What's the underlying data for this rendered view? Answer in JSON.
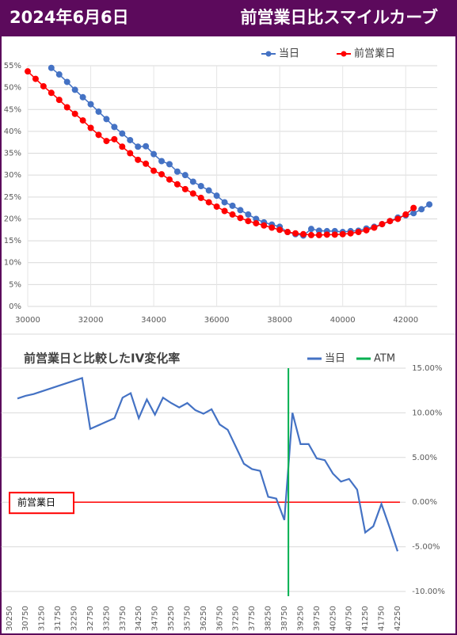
{
  "header": {
    "date": "2024年6月6日",
    "title": "前営業日比スマイルカーブ"
  },
  "chart_data": [
    {
      "type": "line",
      "markers": true,
      "grid": "xy",
      "legend": "top-right",
      "xlim": [
        30000,
        43000
      ],
      "xticks": [
        30000,
        32000,
        34000,
        36000,
        38000,
        40000,
        42000
      ],
      "ylim": [
        0,
        55
      ],
      "yticks": [
        {
          "value": 0,
          "label": "0%"
        },
        {
          "value": 5,
          "label": "5%"
        },
        {
          "value": 10,
          "label": "10%"
        },
        {
          "value": 15,
          "label": "15%"
        },
        {
          "value": 20,
          "label": "20%"
        },
        {
          "value": 25,
          "label": "25%"
        },
        {
          "value": 30,
          "label": "30%"
        },
        {
          "value": 35,
          "label": "35%"
        },
        {
          "value": 40,
          "label": "40%"
        },
        {
          "value": 45,
          "label": "45%"
        },
        {
          "value": 50,
          "label": "50%"
        },
        {
          "value": 55,
          "label": "55%"
        }
      ],
      "series": [
        {
          "name": "当日",
          "color": "#4472c4",
          "x": [
            30750,
            31000,
            31250,
            31500,
            31750,
            32000,
            32250,
            32500,
            32750,
            33000,
            33250,
            33500,
            33750,
            34000,
            34250,
            34500,
            34750,
            35000,
            35250,
            35500,
            35750,
            36000,
            36250,
            36500,
            36750,
            37000,
            37250,
            37500,
            37750,
            38000,
            38250,
            38500,
            38750,
            39000,
            39250,
            39500,
            39750,
            40000,
            40250,
            40500,
            40750,
            41000,
            41250,
            41500,
            41750,
            42000,
            42250,
            42500,
            42750
          ],
          "values": [
            54.5,
            53,
            51.3,
            49.5,
            47.8,
            46.2,
            44.5,
            42.8,
            41,
            39.5,
            38,
            36.5,
            36.6,
            34.8,
            33.2,
            32.5,
            30.8,
            30,
            28.5,
            27.5,
            26.5,
            25.3,
            23.8,
            23,
            22,
            21,
            20,
            19.2,
            18.7,
            18.2,
            17,
            16.5,
            16.2,
            17.7,
            17.3,
            17.2,
            17.2,
            17,
            17.2,
            17.3,
            17.8,
            18.2,
            18.8,
            19.5,
            20.3,
            20.8,
            21.3,
            22.2,
            23.3
          ]
        },
        {
          "name": "前営業日",
          "color": "#ff0000",
          "x": [
            30000,
            30250,
            30500,
            30750,
            31000,
            31250,
            31500,
            31750,
            32000,
            32250,
            32500,
            32750,
            33000,
            33250,
            33500,
            33750,
            34000,
            34250,
            34500,
            34750,
            35000,
            35250,
            35500,
            35750,
            36000,
            36250,
            36500,
            36750,
            37000,
            37250,
            37500,
            37750,
            38000,
            38250,
            38500,
            38750,
            39000,
            39250,
            39500,
            39750,
            40000,
            40250,
            40500,
            40750,
            41000,
            41250,
            41500,
            41750,
            42000,
            42250
          ],
          "values": [
            53.7,
            52,
            50.3,
            48.8,
            47.2,
            45.5,
            44,
            42.5,
            40.8,
            39.2,
            37.8,
            38.2,
            36.5,
            35,
            33.5,
            32.6,
            31,
            30.2,
            29,
            27.9,
            26.8,
            25.8,
            24.8,
            23.8,
            22.8,
            21.8,
            21,
            20.2,
            19.5,
            19,
            18.5,
            18,
            17.5,
            17,
            16.7,
            16.5,
            16.3,
            16.3,
            16.4,
            16.4,
            16.5,
            16.7,
            17,
            17.4,
            18,
            18.8,
            19.5,
            20,
            21,
            22.5
          ]
        }
      ]
    },
    {
      "type": "line",
      "title": "前営業日と比較したIV変化率",
      "markers": false,
      "grid": "y",
      "yaxis": "right",
      "legend": "top-right",
      "xlim": [
        30000,
        42500
      ],
      "xticks": [
        30250,
        30750,
        31250,
        31750,
        32250,
        32750,
        33250,
        33750,
        34250,
        34750,
        35250,
        35750,
        36250,
        36750,
        37250,
        37750,
        38250,
        38750,
        39250,
        39750,
        40250,
        40750,
        41250,
        41750,
        42250
      ],
      "ylim": [
        -10,
        15
      ],
      "yticks": [
        {
          "value": 15,
          "label": "15.00%"
        },
        {
          "value": 10,
          "label": "10.00%"
        },
        {
          "value": 5,
          "label": "5.00%"
        },
        {
          "value": 0,
          "label": "0.00%"
        },
        {
          "value": -5,
          "label": "-5.00%"
        },
        {
          "value": -10,
          "label": "-10.00%"
        }
      ],
      "series": [
        {
          "name": "当日",
          "color": "#4472c4",
          "x": [
            30500,
            30750,
            31000,
            31250,
            31500,
            31750,
            32000,
            32250,
            32500,
            32750,
            33000,
            33250,
            33500,
            33750,
            34000,
            34250,
            34500,
            34750,
            35000,
            35250,
            35500,
            35750,
            36000,
            36250,
            36500,
            36750,
            37000,
            37250,
            37500,
            37750,
            38000,
            38250,
            38500,
            38750,
            39000,
            39250,
            39500,
            39750,
            40000,
            40250,
            40500,
            40750,
            41000,
            41250,
            41500,
            41750,
            42000,
            42250
          ],
          "values": [
            11.6,
            11.9,
            12.1,
            12.4,
            12.7,
            13.0,
            13.3,
            13.6,
            13.9,
            8.2,
            8.6,
            9.0,
            9.4,
            11.7,
            12.2,
            9.4,
            11.5,
            9.8,
            11.7,
            11.1,
            10.6,
            11.1,
            10.3,
            9.9,
            10.4,
            8.7,
            8.1,
            6.2,
            4.3,
            3.7,
            3.5,
            0.6,
            0.4,
            -2.0,
            10.0,
            6.5,
            6.5,
            4.9,
            4.7,
            3.2,
            2.3,
            2.6,
            1.4,
            -3.4,
            -2.7,
            -0.2,
            -2.8,
            -5.5
          ]
        }
      ],
      "vlines": [
        {
          "name": "ATM",
          "color": "#00b050",
          "x": 38875
        }
      ],
      "reference_line": {
        "label": "前営業日",
        "value": 0,
        "color": "#ff0000"
      }
    }
  ]
}
